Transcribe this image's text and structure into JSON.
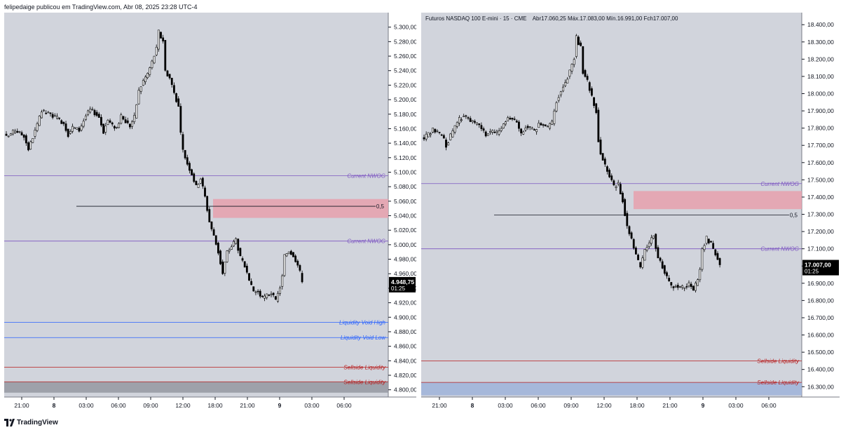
{
  "header": {
    "publisher": "felipedaige publicou em TradingView.com, Abr 08, 2025 23:28 UTC-4"
  },
  "footer": {
    "brand": "TradingView"
  },
  "colors": {
    "plot_bg": "#d1d4dc",
    "up_candle": "#ffffff",
    "down_candle": "#000000",
    "nwog_line": "#7e57c2",
    "nwog_text": "#7e57c2",
    "void_line": "#2962ff",
    "void_text": "#2962ff",
    "sellside_line": "#b71c1c",
    "sellside_text": "#b71c1c",
    "fvg_zone": "#e8a0ad",
    "gray_zone": "#9598a1",
    "blue_zone": "#9fb3d9",
    "price_tag_bg": "#000000"
  },
  "chart_data": [
    {
      "type": "candlestick",
      "title": "",
      "x_tick_labels": [
        "21:00",
        "8",
        "03:00",
        "06:00",
        "09:00",
        "12:00",
        "18:00",
        "21:00",
        "9",
        "03:00",
        "06:00"
      ],
      "ylim": [
        4790,
        5320
      ],
      "y_tick_labels": [
        "5.300,00",
        "5.280,00",
        "5.260,00",
        "5.240,00",
        "5.220,00",
        "5.200,00",
        "5.180,00",
        "5.160,00",
        "5.140,00",
        "5.120,00",
        "5.100,00",
        "5.080,00",
        "5.060,00",
        "5.040,00",
        "5.020,00",
        "5.000,00",
        "4.980,00",
        "4.960,00",
        "4.940,00",
        "4.920,00",
        "4.900,00",
        "4.880,00",
        "4.860,00",
        "4.840,00",
        "4.820,00",
        "4.800,00"
      ],
      "y_tick_values": [
        5300,
        5280,
        5260,
        5240,
        5220,
        5200,
        5180,
        5160,
        5140,
        5120,
        5100,
        5080,
        5060,
        5040,
        5020,
        5000,
        4980,
        4960,
        4940,
        4920,
        4900,
        4880,
        4860,
        4840,
        4820,
        4800
      ],
      "last_price": {
        "value": 4948.75,
        "label": "4.948,75",
        "countdown": "01:25"
      },
      "close_path": [
        [
          0,
          5148
        ],
        [
          4,
          5158
        ],
        [
          8,
          5150
        ],
        [
          10,
          5132
        ],
        [
          14,
          5165
        ],
        [
          16,
          5184
        ],
        [
          18,
          5182
        ],
        [
          21,
          5178
        ],
        [
          24,
          5172
        ],
        [
          26,
          5168
        ],
        [
          28,
          5152
        ],
        [
          30,
          5162
        ],
        [
          33,
          5158
        ],
        [
          36,
          5178
        ],
        [
          38,
          5186
        ],
        [
          40,
          5182
        ],
        [
          42,
          5176
        ],
        [
          44,
          5156
        ],
        [
          46,
          5172
        ],
        [
          48,
          5164
        ],
        [
          50,
          5162
        ],
        [
          52,
          5176
        ],
        [
          54,
          5170
        ],
        [
          56,
          5164
        ],
        [
          58,
          5176
        ],
        [
          60,
          5212
        ],
        [
          62,
          5226
        ],
        [
          64,
          5236
        ],
        [
          66,
          5252
        ],
        [
          68,
          5270
        ],
        [
          69,
          5294
        ],
        [
          70,
          5286
        ],
        [
          71,
          5282
        ],
        [
          72,
          5240
        ],
        [
          74,
          5230
        ],
        [
          76,
          5210
        ],
        [
          78,
          5190
        ],
        [
          79,
          5152
        ],
        [
          80,
          5130
        ],
        [
          82,
          5112
        ],
        [
          84,
          5098
        ],
        [
          86,
          5080
        ],
        [
          88,
          5092
        ],
        [
          90,
          5066
        ],
        [
          92,
          5032
        ],
        [
          94,
          5012
        ],
        [
          96,
          4990
        ],
        [
          98,
          4960
        ],
        [
          100,
          4990
        ],
        [
          102,
          4998
        ],
        [
          104,
          5008
        ],
        [
          106,
          4982
        ],
        [
          108,
          4970
        ],
        [
          110,
          4948
        ],
        [
          112,
          4936
        ],
        [
          114,
          4935
        ],
        [
          116,
          4926
        ],
        [
          118,
          4930
        ],
        [
          120,
          4934
        ],
        [
          122,
          4922
        ],
        [
          124,
          4942
        ],
        [
          125,
          4956
        ],
        [
          126,
          4985
        ],
        [
          128,
          4992
        ],
        [
          130,
          4986
        ],
        [
          132,
          4972
        ],
        [
          133,
          4962
        ],
        [
          134,
          4948.75
        ]
      ],
      "levels": [
        {
          "name": "Current NWOG",
          "value": 5095,
          "kind": "nwog"
        },
        {
          "name": "Current NWOG",
          "value": 5005,
          "kind": "nwog"
        },
        {
          "name": "Liquidity Void High",
          "value": 4893,
          "kind": "void"
        },
        {
          "name": "Liquidity Void Low",
          "value": 4872,
          "kind": "void"
        },
        {
          "name": "Sellside Liquidity",
          "value": 4831,
          "kind": "sellside"
        },
        {
          "name": "Sellside Liquidity",
          "value": 4811,
          "kind": "sellside"
        }
      ],
      "midline": {
        "label": "0,5",
        "value": 5053
      },
      "zones": [
        {
          "kind": "fvg",
          "from": 5037,
          "to": 5063
        },
        {
          "kind": "gray",
          "from": 4796,
          "to": 4811
        }
      ]
    },
    {
      "type": "candlestick",
      "title": "Futuros NASDAQ 100 E-mini · 15 · CME",
      "ohlc_readout": "Abr17.060,25  Máx.17.083,00  Mín.16.991,00  Fch17.007,00",
      "x_tick_labels": [
        "21:00",
        "8",
        "03:00",
        "06:00",
        "09:00",
        "12:00",
        "18:00",
        "21:00",
        "9",
        "03:00",
        "06:00"
      ],
      "ylim": [
        16240,
        18470
      ],
      "y_tick_labels": [
        "18.400,00",
        "18.300,00",
        "18.200,00",
        "18.100,00",
        "18.000,00",
        "17.900,00",
        "17.800,00",
        "17.700,00",
        "17.600,00",
        "17.500,00",
        "17.400,00",
        "17.300,00",
        "17.200,00",
        "17.100,00",
        "17.000,00",
        "16.900,00",
        "16.800,00",
        "16.700,00",
        "16.600,00",
        "16.500,00",
        "16.400,00",
        "16.300,00"
      ],
      "y_tick_values": [
        18400,
        18300,
        18200,
        18100,
        18000,
        17900,
        17800,
        17700,
        17600,
        17500,
        17400,
        17300,
        17200,
        17100,
        17000,
        16900,
        16800,
        16700,
        16600,
        16500,
        16400,
        16300
      ],
      "last_price": {
        "value": 17007,
        "label": "17.007,00",
        "countdown": "01:25"
      },
      "close_path": [
        [
          0,
          17740
        ],
        [
          4,
          17790
        ],
        [
          8,
          17760
        ],
        [
          10,
          17700
        ],
        [
          14,
          17810
        ],
        [
          16,
          17850
        ],
        [
          18,
          17870
        ],
        [
          21,
          17840
        ],
        [
          24,
          17820
        ],
        [
          26,
          17800
        ],
        [
          28,
          17760
        ],
        [
          30,
          17780
        ],
        [
          33,
          17770
        ],
        [
          36,
          17820
        ],
        [
          38,
          17860
        ],
        [
          40,
          17850
        ],
        [
          42,
          17830
        ],
        [
          44,
          17760
        ],
        [
          46,
          17810
        ],
        [
          48,
          17800
        ],
        [
          50,
          17780
        ],
        [
          52,
          17830
        ],
        [
          54,
          17820
        ],
        [
          56,
          17800
        ],
        [
          58,
          17830
        ],
        [
          60,
          17960
        ],
        [
          62,
          18020
        ],
        [
          64,
          18060
        ],
        [
          66,
          18130
        ],
        [
          68,
          18210
        ],
        [
          69,
          18330
        ],
        [
          70,
          18290
        ],
        [
          71,
          18270
        ],
        [
          72,
          18130
        ],
        [
          74,
          18070
        ],
        [
          76,
          17980
        ],
        [
          78,
          17900
        ],
        [
          79,
          17730
        ],
        [
          80,
          17660
        ],
        [
          82,
          17580
        ],
        [
          84,
          17520
        ],
        [
          86,
          17460
        ],
        [
          88,
          17480
        ],
        [
          90,
          17380
        ],
        [
          92,
          17230
        ],
        [
          94,
          17160
        ],
        [
          96,
          17060
        ],
        [
          98,
          16990
        ],
        [
          100,
          17090
        ],
        [
          102,
          17130
        ],
        [
          104,
          17180
        ],
        [
          106,
          17040
        ],
        [
          108,
          17000
        ],
        [
          110,
          16930
        ],
        [
          112,
          16880
        ],
        [
          114,
          16890
        ],
        [
          116,
          16870
        ],
        [
          118,
          16880
        ],
        [
          120,
          16900
        ],
        [
          122,
          16860
        ],
        [
          124,
          16920
        ],
        [
          125,
          16980
        ],
        [
          126,
          17100
        ],
        [
          128,
          17160
        ],
        [
          130,
          17130
        ],
        [
          132,
          17070
        ],
        [
          133,
          17040
        ],
        [
          134,
          17007
        ]
      ],
      "levels": [
        {
          "name": "Current NWOG",
          "value": 17478,
          "kind": "nwog"
        },
        {
          "name": "Current NWOG",
          "value": 17100,
          "kind": "nwog"
        },
        {
          "name": "Sellside Liquidity",
          "value": 16450,
          "kind": "sellside"
        },
        {
          "name": "Sellside Liquidity",
          "value": 16325,
          "kind": "sellside"
        }
      ],
      "midline": {
        "label": "0,5",
        "value": 17296
      },
      "zones": [
        {
          "kind": "fvg",
          "from": 17330,
          "to": 17435
        },
        {
          "kind": "blue",
          "from": 16250,
          "to": 16325
        }
      ]
    }
  ]
}
